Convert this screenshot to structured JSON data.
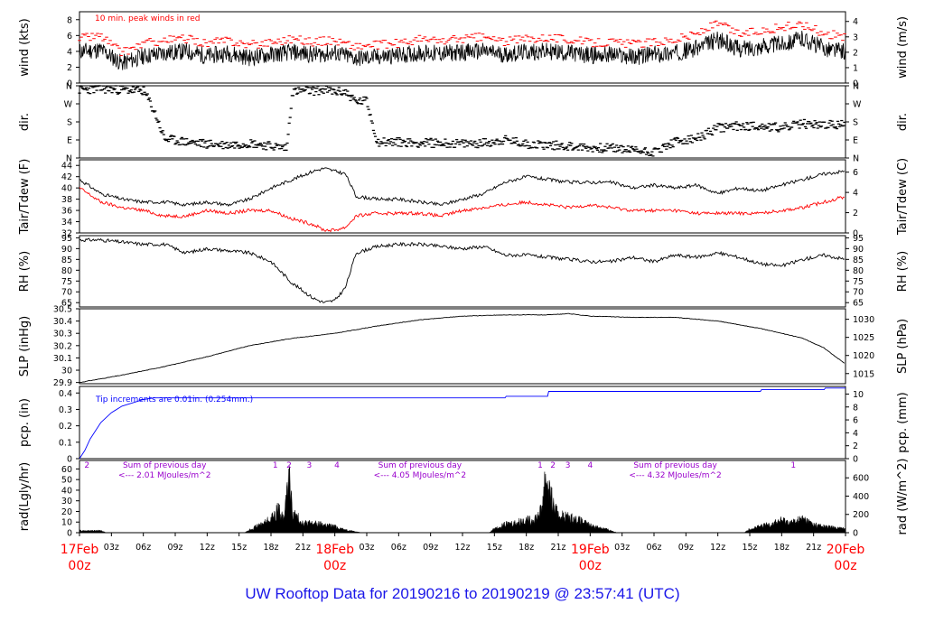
{
  "title": "UW Rooftop Data for 20190216  to  20190219 @ 23:57:41  (UTC)",
  "colors": {
    "axis": "#000000",
    "wind_peak": "#ff0000",
    "dewpoint": "#ff0000",
    "precip": "#0000ff",
    "radiation_labels": "#9900cc",
    "day_labels": "#ff0000",
    "title": "#1a16e8"
  },
  "x_axis": {
    "ticks": [
      {
        "h": 0,
        "l": "17Feb",
        "l2": "00z",
        "major": true
      },
      {
        "h": 3,
        "l": "03z"
      },
      {
        "h": 6,
        "l": "06z"
      },
      {
        "h": 9,
        "l": "09z"
      },
      {
        "h": 12,
        "l": "12z"
      },
      {
        "h": 15,
        "l": "15z"
      },
      {
        "h": 18,
        "l": "18z"
      },
      {
        "h": 21,
        "l": "21z"
      },
      {
        "h": 24,
        "l": "18Feb",
        "l2": "00z",
        "major": true
      },
      {
        "h": 27,
        "l": "03z"
      },
      {
        "h": 30,
        "l": "06z"
      },
      {
        "h": 33,
        "l": "09z"
      },
      {
        "h": 36,
        "l": "12z"
      },
      {
        "h": 39,
        "l": "15z"
      },
      {
        "h": 42,
        "l": "18z"
      },
      {
        "h": 45,
        "l": "21z"
      },
      {
        "h": 48,
        "l": "19Feb",
        "l2": "00z",
        "major": true
      },
      {
        "h": 51,
        "l": "03z"
      },
      {
        "h": 54,
        "l": "06z"
      },
      {
        "h": 57,
        "l": "09z"
      },
      {
        "h": 60,
        "l": "12z"
      },
      {
        "h": 63,
        "l": "15z"
      },
      {
        "h": 66,
        "l": "18z"
      },
      {
        "h": 69,
        "l": "21z"
      },
      {
        "h": 72,
        "l": "20Feb",
        "l2": "00z",
        "major": true
      }
    ]
  },
  "chart_data": [
    {
      "type": "line",
      "id": "wind",
      "ylabel": "wind (kts)",
      "ylabel_right": "wind (m/s)",
      "ylim": [
        0,
        9
      ],
      "yticks": [
        0,
        2,
        4,
        6,
        8
      ],
      "right_ylim": [
        0,
        4.63
      ],
      "right_yticks": [
        0,
        1,
        2,
        3,
        4
      ],
      "annotation": "10 min. peak winds in red",
      "series": [
        {
          "x": [
            0,
            2,
            4,
            6,
            8,
            10,
            12,
            14,
            16,
            18,
            20,
            22,
            24,
            26,
            28,
            30,
            32,
            34,
            36,
            38,
            40,
            42,
            44,
            46,
            48,
            50,
            52,
            54,
            56,
            58,
            60,
            62,
            64,
            66,
            68,
            70,
            72
          ],
          "values": [
            4.0,
            4.2,
            2.5,
            3.4,
            3.8,
            4.0,
            3.4,
            3.8,
            3.2,
            3.6,
            3.9,
            3.6,
            3.8,
            3.1,
            3.3,
            3.5,
            3.8,
            3.7,
            3.9,
            4.0,
            3.6,
            3.9,
            4.0,
            3.8,
            3.5,
            3.6,
            3.3,
            3.6,
            3.8,
            4.4,
            5.5,
            4.3,
            4.6,
            5.0,
            5.6,
            4.4,
            4.0
          ]
        },
        {
          "x": [
            0,
            2,
            4,
            6,
            8,
            10,
            12,
            14,
            16,
            18,
            20,
            22,
            24,
            26,
            28,
            30,
            32,
            34,
            36,
            38,
            40,
            42,
            44,
            46,
            48,
            50,
            52,
            54,
            56,
            58,
            60,
            62,
            64,
            66,
            68,
            70,
            72
          ],
          "values": [
            5.7,
            6.0,
            3.8,
            5.0,
            5.4,
            5.6,
            5.0,
            5.4,
            4.8,
            5.2,
            5.6,
            5.2,
            5.4,
            4.6,
            4.8,
            5.0,
            5.5,
            5.3,
            5.6,
            5.8,
            5.2,
            5.6,
            5.8,
            5.5,
            5.1,
            5.2,
            4.9,
            5.2,
            5.5,
            6.2,
            7.5,
            6.2,
            6.6,
            7.0,
            7.4,
            6.3,
            5.8
          ]
        }
      ]
    },
    {
      "type": "scatter",
      "id": "dir",
      "ylabel": "dir.",
      "ylabel_right": "dir.",
      "ylim": [
        0,
        360
      ],
      "ytick_values": [
        0,
        90,
        180,
        270,
        360
      ],
      "ytick_labels": [
        "N",
        "E",
        "S",
        "W",
        "N"
      ],
      "series": [
        {
          "x": [
            0,
            2,
            4,
            6,
            6.6,
            7.2,
            8,
            10,
            12,
            14,
            16,
            18,
            19.5,
            20,
            21,
            22,
            23,
            24,
            25,
            26,
            27,
            28,
            30,
            32,
            34,
            36,
            38,
            40,
            42,
            44,
            46,
            48,
            50,
            52,
            54,
            56,
            58,
            60,
            62,
            64,
            66,
            68,
            70,
            72
          ],
          "values": [
            340,
            345,
            340,
            335,
            280,
            210,
            95,
            80,
            70,
            65,
            75,
            60,
            50,
            330,
            335,
            335,
            340,
            330,
            330,
            280,
            285,
            80,
            80,
            75,
            75,
            70,
            75,
            90,
            70,
            65,
            60,
            50,
            50,
            40,
            30,
            80,
            95,
            150,
            160,
            160,
            150,
            170,
            165,
            165
          ]
        }
      ]
    },
    {
      "type": "line",
      "id": "temp",
      "ylabel": "Tair/Tdew (F)",
      "ylabel_right": "Tair/Tdew (C)",
      "ylim": [
        32,
        45
      ],
      "yticks": [
        32,
        34,
        36,
        38,
        40,
        42,
        44
      ],
      "right_ylim": [
        0,
        7.22
      ],
      "right_yticks": [
        0,
        2,
        4,
        6
      ],
      "series": [
        {
          "x": [
            0,
            2,
            4,
            6,
            8,
            10,
            12,
            14,
            16,
            18,
            20,
            22,
            23,
            24,
            25,
            26,
            28,
            30,
            32,
            34,
            36,
            38,
            40,
            42,
            44,
            46,
            48,
            50,
            52,
            54,
            56,
            58,
            60,
            62,
            64,
            66,
            68,
            70,
            72
          ],
          "values": [
            41.5,
            39.0,
            38.0,
            37.5,
            37.5,
            37.0,
            37.5,
            37.0,
            38.0,
            40.0,
            41.5,
            43.0,
            43.5,
            43.0,
            42.5,
            38.5,
            38.0,
            38.0,
            37.5,
            37.0,
            38.0,
            39.0,
            41.0,
            42.0,
            41.5,
            41.0,
            41.0,
            41.0,
            40.0,
            40.5,
            40.0,
            40.5,
            39.0,
            40.0,
            39.5,
            40.5,
            41.5,
            42.5,
            43.0
          ]
        },
        {
          "x": [
            0,
            2,
            4,
            6,
            8,
            10,
            12,
            14,
            16,
            18,
            20,
            22,
            23,
            24,
            25,
            26,
            28,
            30,
            32,
            34,
            36,
            38,
            40,
            42,
            44,
            46,
            48,
            50,
            52,
            54,
            56,
            58,
            60,
            62,
            64,
            66,
            68,
            70,
            72
          ],
          "values": [
            40.0,
            37.5,
            36.5,
            36.0,
            35.0,
            35.0,
            36.0,
            35.5,
            36.0,
            36.0,
            34.5,
            33.5,
            32.5,
            32.5,
            33.0,
            35.0,
            35.5,
            35.5,
            35.5,
            35.0,
            36.0,
            36.5,
            37.0,
            37.5,
            37.0,
            36.5,
            37.0,
            36.5,
            36.0,
            36.0,
            36.0,
            35.5,
            35.5,
            35.5,
            35.5,
            36.0,
            36.5,
            37.5,
            38.5
          ]
        }
      ]
    },
    {
      "type": "line",
      "id": "rh",
      "ylabel": "RH (%)",
      "ylabel_right": "RH (%)",
      "ylim": [
        63,
        96
      ],
      "yticks": [
        65,
        70,
        75,
        80,
        85,
        90,
        95
      ],
      "right_yticks": [
        65,
        70,
        75,
        80,
        85,
        90,
        95
      ],
      "series": [
        {
          "x": [
            0,
            2,
            4,
            6,
            8,
            10,
            12,
            14,
            16,
            18,
            20,
            22,
            23,
            24,
            25,
            26,
            28,
            30,
            32,
            34,
            36,
            38,
            40,
            42,
            44,
            46,
            48,
            50,
            52,
            54,
            56,
            58,
            60,
            62,
            64,
            66,
            68,
            70,
            72
          ],
          "values": [
            94,
            94,
            93,
            92,
            92,
            88,
            90,
            89,
            88,
            84,
            74,
            67,
            65,
            66,
            72,
            88,
            91,
            92,
            92,
            91,
            90,
            91,
            87,
            87,
            86,
            85,
            84,
            84,
            86,
            84,
            87,
            86,
            88,
            86,
            83,
            82,
            85,
            87,
            85
          ]
        }
      ]
    },
    {
      "type": "line",
      "id": "slp",
      "ylabel": "SLP (inHg)",
      "ylabel_right": "SLP (hPa)",
      "ylim": [
        29.89,
        30.5
      ],
      "yticks": [
        29.9,
        30.0,
        30.1,
        30.2,
        30.3,
        30.4,
        30.5
      ],
      "right_ylim": [
        1012.2,
        1032.9
      ],
      "right_yticks": [
        1015,
        1020,
        1025,
        1030
      ],
      "series": [
        {
          "x": [
            0,
            4,
            8,
            12,
            16,
            20,
            24,
            28,
            32,
            36,
            40,
            44,
            46,
            48,
            52,
            56,
            60,
            64,
            66,
            68,
            70,
            72
          ],
          "values": [
            29.9,
            29.96,
            30.03,
            30.11,
            30.2,
            30.26,
            30.3,
            30.36,
            30.41,
            30.44,
            30.45,
            30.45,
            30.46,
            30.44,
            30.43,
            30.43,
            30.4,
            30.34,
            30.3,
            30.26,
            30.18,
            30.05
          ]
        }
      ]
    },
    {
      "type": "line",
      "id": "pcp",
      "ylabel": "pcp. (in)",
      "ylabel_right": "pcp. (mm)",
      "ylim": [
        0,
        0.44
      ],
      "yticks": [
        0.0,
        0.1,
        0.2,
        0.3,
        0.4
      ],
      "right_ylim": [
        0,
        11.18
      ],
      "right_yticks": [
        0,
        2,
        4,
        6,
        8,
        10
      ],
      "annotation": "Tip increments are 0.01in. (0.254mm.)",
      "series": [
        {
          "x": [
            0,
            0.5,
            1,
            2,
            3,
            4,
            5,
            6,
            7,
            24,
            40,
            40.1,
            44,
            44.1,
            64,
            64.1,
            70,
            70.1,
            72
          ],
          "values": [
            0,
            0.05,
            0.12,
            0.22,
            0.28,
            0.32,
            0.34,
            0.36,
            0.37,
            0.37,
            0.37,
            0.38,
            0.38,
            0.41,
            0.41,
            0.42,
            0.42,
            0.43,
            0.43
          ]
        }
      ]
    },
    {
      "type": "area",
      "id": "rad",
      "ylabel": "rad(Lgly/hr)",
      "ylabel_right": "rad (W/m^2)",
      "ylim": [
        0,
        68
      ],
      "yticks": [
        0,
        10,
        20,
        30,
        40,
        50,
        60
      ],
      "right_ylim": [
        0,
        790
      ],
      "right_yticks": [
        0,
        200,
        400,
        600
      ],
      "markers": [
        {
          "h": 0.7,
          "t": "2"
        },
        {
          "h": 18.4,
          "t": "1"
        },
        {
          "h": 19.7,
          "t": "2"
        },
        {
          "h": 21.6,
          "t": "3"
        },
        {
          "h": 24.2,
          "t": "4"
        },
        {
          "h": 43.3,
          "t": "1"
        },
        {
          "h": 44.5,
          "t": "2"
        },
        {
          "h": 45.9,
          "t": "3"
        },
        {
          "h": 48.0,
          "t": "4"
        },
        {
          "h": 67.1,
          "t": "1"
        }
      ],
      "day_totals": [
        {
          "h": 8.0,
          "line1": "Sum of previous day",
          "line2": "<--- 2.01 MJoules/m^2"
        },
        {
          "h": 32.0,
          "line1": "Sum of previous day",
          "line2": "<--- 4.05 MJoules/m^2"
        },
        {
          "h": 56.0,
          "line1": "Sum of previous day",
          "line2": "<--- 4.32 MJoules/m^2"
        }
      ],
      "series": [
        {
          "x": [
            0,
            2,
            2.5,
            15.5,
            16,
            17,
            18,
            18.7,
            19.2,
            19.5,
            19.7,
            20,
            20.5,
            21,
            22,
            23,
            24,
            25,
            26.5,
            38.5,
            39,
            40,
            41,
            42,
            42.5,
            43,
            43.4,
            43.8,
            44.2,
            44.6,
            45,
            46,
            47,
            48,
            49,
            50,
            50.5,
            62.5,
            63,
            64,
            65,
            66,
            67,
            68,
            69,
            70,
            71,
            72
          ],
          "values": [
            2,
            2,
            0,
            0,
            3,
            8,
            14,
            23,
            14,
            35,
            62,
            20,
            15,
            10,
            9,
            8,
            6,
            3,
            0,
            0,
            4,
            8,
            10,
            13,
            12,
            16,
            22,
            58,
            42,
            25,
            18,
            15,
            12,
            7,
            5,
            2,
            0,
            0,
            4,
            6,
            9,
            12,
            10,
            14,
            8,
            6,
            5,
            4
          ]
        }
      ]
    }
  ]
}
